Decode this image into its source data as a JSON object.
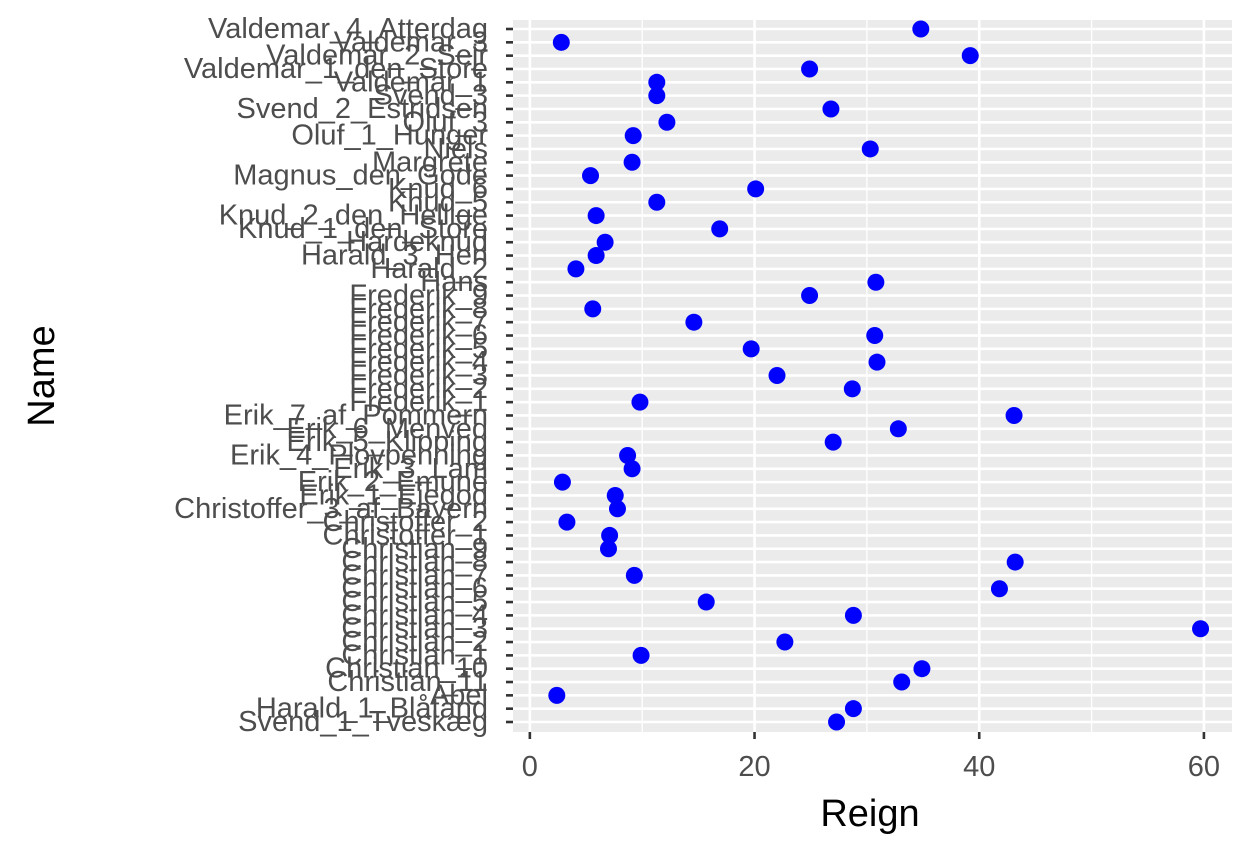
{
  "chart_data": {
    "type": "scatter",
    "xlabel": "Reign",
    "ylabel": "Name",
    "xlim": [
      -1.5,
      62.5
    ],
    "x_ticks": [
      0,
      20,
      40,
      60
    ],
    "grid": true,
    "legend": "none",
    "point_color": "#0000ff",
    "panel_color": "#ebebeb",
    "gridline_color": "#ffffff",
    "points": [
      {
        "name": "Valdemar_4_Atterdag",
        "reign": 34.8
      },
      {
        "name": "Valdemar_3",
        "reign": 2.8
      },
      {
        "name": "Valdemar_2_Sejr",
        "reign": 39.2
      },
      {
        "name": "Valdemar_1_den_Store",
        "reign": 24.9
      },
      {
        "name": "Valdemar_1",
        "reign": 11.3
      },
      {
        "name": "Svend_3",
        "reign": 11.3
      },
      {
        "name": "Svend_2_Estridsen",
        "reign": 26.8
      },
      {
        "name": "Oluf_3",
        "reign": 12.2
      },
      {
        "name": "Oluf_1_Hunger",
        "reign": 9.2
      },
      {
        "name": "Niels",
        "reign": 30.3
      },
      {
        "name": "Margrete",
        "reign": 9.1
      },
      {
        "name": "Magnus_den_Gode",
        "reign": 5.4
      },
      {
        "name": "Knud_6",
        "reign": 20.1
      },
      {
        "name": "Knud_5",
        "reign": 11.3
      },
      {
        "name": "Knud_2_den_Hellige",
        "reign": 5.9
      },
      {
        "name": "Knud_1_den_Store",
        "reign": 16.9
      },
      {
        "name": "Hardeknud",
        "reign": 6.7
      },
      {
        "name": "Harald_3_Hen",
        "reign": 5.9
      },
      {
        "name": "Harald_2",
        "reign": 4.1
      },
      {
        "name": "Hans",
        "reign": 30.8
      },
      {
        "name": "Frederik_9",
        "reign": 24.9
      },
      {
        "name": "Frederik_8",
        "reign": 5.6
      },
      {
        "name": "Frederik_7",
        "reign": 14.6
      },
      {
        "name": "Frederik_6",
        "reign": 30.7
      },
      {
        "name": "Frederik_5",
        "reign": 19.7
      },
      {
        "name": "Frederik_4",
        "reign": 30.9
      },
      {
        "name": "Frederik_3",
        "reign": 22.0
      },
      {
        "name": "Frederik_2",
        "reign": 28.7
      },
      {
        "name": "Frederik_1",
        "reign": 9.8
      },
      {
        "name": "Erik_7_af_Pommern",
        "reign": 43.1
      },
      {
        "name": "Erik_6_Menved",
        "reign": 32.8
      },
      {
        "name": "Erik_5_Klipping",
        "reign": 27.0
      },
      {
        "name": "Erik_4_Plovpenning",
        "reign": 8.7
      },
      {
        "name": "Erik_3_Lam",
        "reign": 9.1
      },
      {
        "name": "Erik_2_Emune",
        "reign": 2.9
      },
      {
        "name": "Erik_1_Ejegod",
        "reign": 7.6
      },
      {
        "name": "Christoffer_3_af_Bayern",
        "reign": 7.8
      },
      {
        "name": "Christoffer_2",
        "reign": 3.3
      },
      {
        "name": "Christoffer_1",
        "reign": 7.1
      },
      {
        "name": "Christian_9",
        "reign": 7.0
      },
      {
        "name": "Christian_8",
        "reign": 43.2
      },
      {
        "name": "Christian_7",
        "reign": 9.3
      },
      {
        "name": "Christian_6",
        "reign": 41.8
      },
      {
        "name": "Christian_5",
        "reign": 15.7
      },
      {
        "name": "Christian_4",
        "reign": 28.8
      },
      {
        "name": "Christian_3",
        "reign": 59.7
      },
      {
        "name": "Christian_2",
        "reign": 22.7
      },
      {
        "name": "Christian_1",
        "reign": 9.9
      },
      {
        "name": "Christian_10",
        "reign": 34.9
      },
      {
        "name": "Christian_11",
        "reign": 33.1
      },
      {
        "name": "Abel",
        "reign": 2.4
      },
      {
        "name": "Harald_1_Blåtand",
        "reign": 28.8
      },
      {
        "name": "Svend_1_Tveskæg",
        "reign": 27.3
      }
    ]
  }
}
